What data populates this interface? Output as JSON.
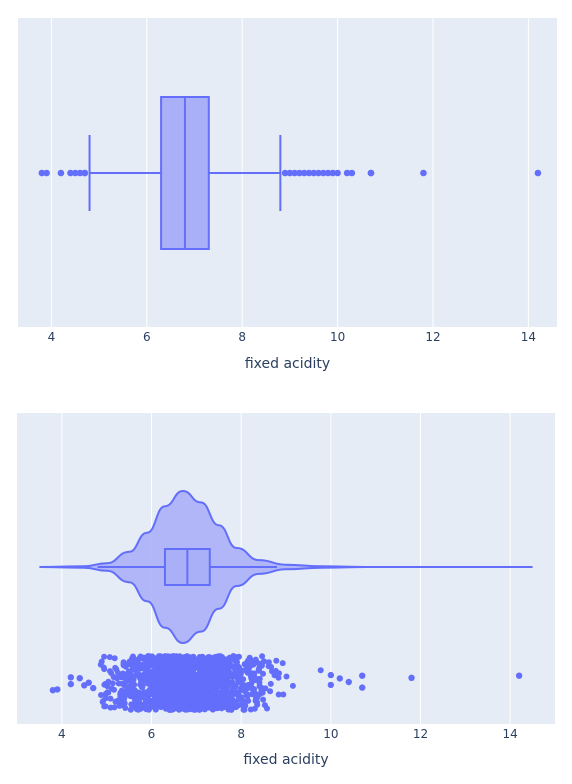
{
  "chart_data": [
    {
      "type": "box",
      "xlabel": "fixed acidity",
      "xrange": [
        3.3,
        14.6
      ],
      "xticks": [
        4,
        6,
        8,
        10,
        12,
        14
      ],
      "grid": true,
      "colors": {
        "plot_bg": "#e5ecf6",
        "series": "#636efa",
        "fill": "#aab0f8",
        "grid": "#ffffff"
      },
      "box": {
        "q1": 6.3,
        "median": 6.8,
        "q3": 7.3,
        "lower_fence": 4.8,
        "upper_fence": 8.8
      },
      "outliers": [
        3.8,
        3.9,
        4.2,
        4.4,
        4.5,
        4.6,
        4.7,
        4.7,
        8.9,
        9.0,
        9.1,
        9.2,
        9.3,
        9.4,
        9.5,
        9.6,
        9.7,
        9.8,
        9.9,
        10.0,
        10.2,
        10.3,
        10.7,
        10.7,
        11.8,
        14.2
      ]
    },
    {
      "type": "violin",
      "xlabel": "fixed acidity",
      "xrange": [
        3.0,
        15.0
      ],
      "xticks": [
        4,
        6,
        8,
        10,
        12,
        14
      ],
      "grid": true,
      "colors": {
        "plot_bg": "#e5ecf6",
        "series": "#636efa",
        "fill": "#aab0f8",
        "grid": "#ffffff"
      },
      "violin": {
        "min": 3.5,
        "max": 14.5,
        "density": [
          [
            3.5,
            0.0
          ],
          [
            4.5,
            0.01
          ],
          [
            5.0,
            0.05
          ],
          [
            5.5,
            0.2
          ],
          [
            5.9,
            0.45
          ],
          [
            6.3,
            0.8
          ],
          [
            6.7,
            1.0
          ],
          [
            7.1,
            0.85
          ],
          [
            7.5,
            0.55
          ],
          [
            7.9,
            0.25
          ],
          [
            8.4,
            0.09
          ],
          [
            9.0,
            0.03
          ],
          [
            9.8,
            0.01
          ],
          [
            10.8,
            0.0
          ],
          [
            14.5,
            0.0
          ]
        ]
      },
      "box": {
        "q1": 6.3,
        "median": 6.8,
        "q3": 7.3,
        "lower_fence": 4.8,
        "upper_fence": 8.8
      },
      "points": {
        "dense_range": [
          4.8,
          9.9
        ],
        "outliers": [
          3.8,
          3.9,
          4.2,
          4.2,
          4.4,
          4.5,
          4.6,
          4.7,
          10.0,
          10.0,
          10.2,
          10.4,
          10.7,
          10.7,
          11.8,
          14.2
        ]
      }
    }
  ]
}
